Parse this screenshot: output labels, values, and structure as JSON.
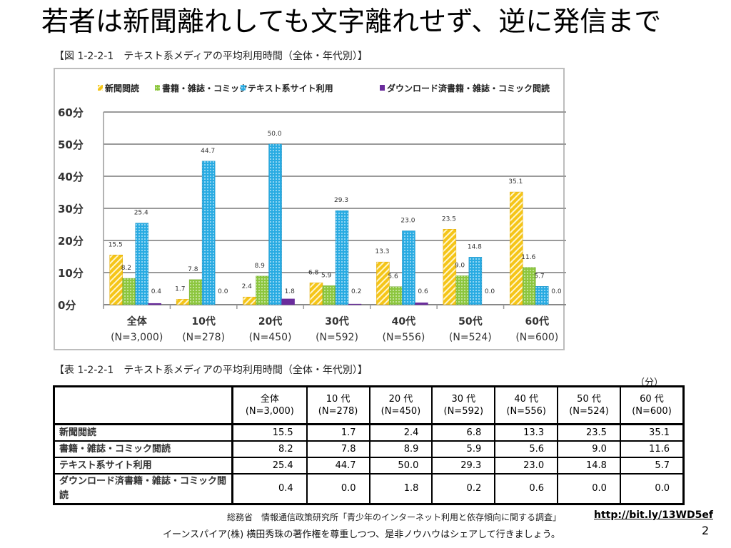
{
  "slide": {
    "title": "若者は新聞離れしても文字離れせず、逆に発信まで",
    "page_number": "2"
  },
  "figure": {
    "caption": "【図 1-2-2-1　テキスト系メディアの平均利用時間（全体・年代別）】"
  },
  "chart_data": {
    "type": "bar",
    "title": "【図 1-2-2-1　テキスト系メディアの平均利用時間（全体・年代別）】",
    "xlabel": "",
    "ylabel": "",
    "ylim": [
      0,
      60
    ],
    "yticks": [
      0,
      10,
      20,
      30,
      40,
      50,
      60
    ],
    "ytick_labels": [
      "0分",
      "10分",
      "20分",
      "30分",
      "40分",
      "50分",
      "60分"
    ],
    "grid": true,
    "legend_position": "top",
    "categories": [
      "全体",
      "10代",
      "20代",
      "30代",
      "40代",
      "50代",
      "60代"
    ],
    "category_sublabels": [
      "(N=3,000)",
      "(N=278)",
      "(N=450)",
      "(N=592)",
      "(N=556)",
      "(N=524)",
      "(N=600)"
    ],
    "series": [
      {
        "name": "新聞閲読",
        "color": "#f5c518",
        "pattern": "diagonal-stripes",
        "values": [
          15.5,
          1.7,
          2.4,
          6.8,
          13.3,
          23.5,
          35.1
        ]
      },
      {
        "name": "書籍・雑誌・コミック",
        "color": "#8cc63f",
        "pattern": "dots",
        "values": [
          8.2,
          7.8,
          8.9,
          5.9,
          5.6,
          9.0,
          11.6
        ]
      },
      {
        "name": "テキスト系サイト利用",
        "color": "#29abe2",
        "pattern": "dots",
        "values": [
          25.4,
          44.7,
          50.0,
          29.3,
          23.0,
          14.8,
          5.7
        ]
      },
      {
        "name": "ダウンロード済書籍・雑誌・コミック閲読",
        "color": "#6a2c9c",
        "pattern": "solid",
        "values": [
          0.4,
          0.0,
          1.8,
          0.2,
          0.6,
          0.0,
          0.0
        ]
      }
    ],
    "data_labels": [
      [
        "15.5",
        "1.7",
        "2.4",
        "6.8",
        "13.3",
        "23.5",
        "35.1"
      ],
      [
        "8.2",
        "7.8",
        "8.9",
        "5.9",
        "5.6",
        "9.0",
        "11.6"
      ],
      [
        "25.4",
        "44.7",
        "50.0",
        "29.3",
        "23.0",
        "14.8",
        "5.7"
      ],
      [
        "0.4",
        "0.0",
        "1.8",
        "0.2",
        "0.6",
        "0.0",
        "0.0"
      ]
    ]
  },
  "table": {
    "caption": "【表 1-2-2-1　テキスト系メディアの平均利用時間（全体・年代別）】",
    "unit": "（分）",
    "columns": [
      {
        "label": "全体",
        "n": "(N=3,000)"
      },
      {
        "label": "10 代",
        "n": "(N=278)"
      },
      {
        "label": "20 代",
        "n": "(N=450)"
      },
      {
        "label": "30 代",
        "n": "(N=592)"
      },
      {
        "label": "40 代",
        "n": "(N=556)"
      },
      {
        "label": "50 代",
        "n": "(N=524)"
      },
      {
        "label": "60 代",
        "n": "(N=600)"
      }
    ],
    "rows": [
      {
        "label": "新聞閲読",
        "values": [
          "15.5",
          "1.7",
          "2.4",
          "6.8",
          "13.3",
          "23.5",
          "35.1"
        ]
      },
      {
        "label": "書籍・雑誌・コミック閲読",
        "values": [
          "8.2",
          "7.8",
          "8.9",
          "5.9",
          "5.6",
          "9.0",
          "11.6"
        ]
      },
      {
        "label": "テキスト系サイト利用",
        "values": [
          "25.4",
          "44.7",
          "50.0",
          "29.3",
          "23.0",
          "14.8",
          "5.7"
        ]
      },
      {
        "label": "ダウンロード済書籍・雑誌・コミック閲読",
        "values": [
          "0.4",
          "0.0",
          "1.8",
          "0.2",
          "0.6",
          "0.0",
          "0.0"
        ]
      }
    ]
  },
  "footer": {
    "source": "総務省　情報通信政策研究所「青少年のインターネット利用と依存傾向に関する調査」",
    "link": "http://bit.ly/13WD5ef",
    "credit": "イーンスパイア(株) 横田秀珠の著作権を尊重しつつ、是非ノウハウはシェアして行きましょう。"
  }
}
